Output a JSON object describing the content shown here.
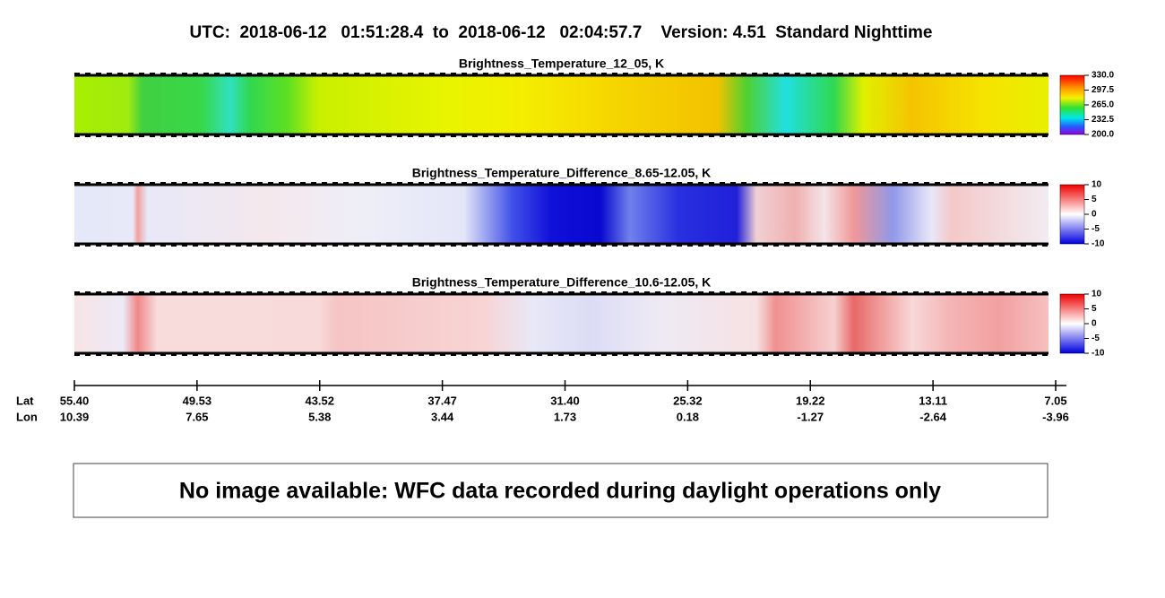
{
  "title": "UTC:  2018-06-12   01:51:28.4  to  2018-06-12   02:04:57.7    Version: 4.51  Standard Nighttime",
  "panels": [
    {
      "title": "Brightness_Temperature_12_05, K",
      "colorbar_ticks": [
        "330.0",
        "297.5",
        "265.0",
        "232.5",
        "200.0"
      ]
    },
    {
      "title": "Brightness_Temperature_Difference_8.65-12.05, K",
      "colorbar_ticks": [
        "10",
        "5",
        "0",
        "-5",
        "-10"
      ]
    },
    {
      "title": "Brightness_Temperature_Difference_10.6-12.05, K",
      "colorbar_ticks": [
        "10",
        "5",
        "0",
        "-5",
        "-10"
      ]
    }
  ],
  "axis": {
    "lat_label": "Lat",
    "lon_label": "Lon",
    "lat": [
      "55.40",
      "49.53",
      "43.52",
      "37.47",
      "31.40",
      "25.32",
      "19.22",
      "13.11",
      "7.05"
    ],
    "lon": [
      "10.39",
      "7.65",
      "5.38",
      "3.44",
      "1.73",
      "0.18",
      "-1.27",
      "-2.64",
      "-3.96"
    ]
  },
  "message": "No image available: WFC data recorded during daylight operations only"
}
